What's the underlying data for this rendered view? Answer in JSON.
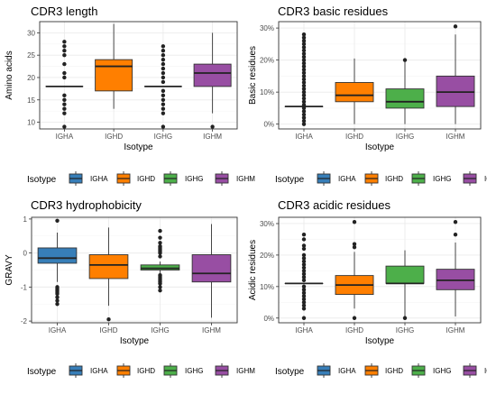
{
  "colors": {
    "IGHA": "#377eb8",
    "IGHD": "#ff7f00",
    "IGHG": "#4daf4a",
    "IGHM": "#984ea3",
    "grid_major": "#ebebeb",
    "grid_minor": "#f4f4f4",
    "panel_border": "#333333",
    "outlier": "#222222"
  },
  "chart_data": [
    {
      "type": "box",
      "title": "CDR3 length",
      "xlabel": "Isotype",
      "ylabel": "Amino acids",
      "categories": [
        "IGHA",
        "IGHD",
        "IGHG",
        "IGHM"
      ],
      "ylim": [
        8.5,
        32.5
      ],
      "yticks": [
        10,
        15,
        20,
        25,
        30
      ],
      "ytick_labels": [
        "10",
        "15",
        "20",
        "25",
        "30"
      ],
      "legend": {
        "title": "Isotype",
        "position": "bottom"
      },
      "boxes": [
        {
          "q1": 18,
          "median": 18,
          "q3": 18,
          "whisker_low": 18,
          "whisker_high": 18,
          "outliers": [
            9,
            12,
            13,
            14,
            15,
            16,
            20,
            21,
            23,
            25,
            26,
            27,
            28
          ]
        },
        {
          "q1": 17,
          "median": 22.5,
          "q3": 24,
          "whisker_low": 13,
          "whisker_high": 32,
          "outliers": []
        },
        {
          "q1": 18,
          "median": 18,
          "q3": 18,
          "whisker_low": 18,
          "whisker_high": 18,
          "outliers": [
            9,
            12,
            13,
            14,
            15,
            16,
            17,
            19,
            20,
            21,
            22,
            23,
            24,
            25,
            26,
            27
          ]
        },
        {
          "q1": 18,
          "median": 21,
          "q3": 23,
          "whisker_low": 12,
          "whisker_high": 30,
          "outliers": [
            9
          ]
        }
      ]
    },
    {
      "type": "box",
      "title": "CDR3 basic residues",
      "xlabel": "Isotype",
      "ylabel": "Basic residues",
      "categories": [
        "IGHA",
        "IGHD",
        "IGHG",
        "IGHM"
      ],
      "ylim": [
        -1.5,
        32
      ],
      "yticks": [
        0,
        10,
        20,
        30
      ],
      "ytick_labels": [
        "0%",
        "10%",
        "20%",
        "30%"
      ],
      "legend": {
        "title": "Isotype",
        "position": "bottom"
      },
      "boxes": [
        {
          "q1": 5.5,
          "median": 5.5,
          "q3": 5.5,
          "whisker_low": 5.5,
          "whisker_high": 5.5,
          "outliers": [
            0,
            1,
            2,
            3,
            4,
            5,
            6,
            7,
            8,
            9,
            10,
            11,
            12,
            13,
            14,
            15,
            16,
            17,
            18,
            19,
            20,
            21,
            22,
            23,
            24,
            25,
            26,
            27,
            28
          ]
        },
        {
          "q1": 7,
          "median": 9,
          "q3": 13,
          "whisker_low": 0,
          "whisker_high": 20.5,
          "outliers": []
        },
        {
          "q1": 5,
          "median": 7,
          "q3": 11,
          "whisker_low": 0,
          "whisker_high": 20,
          "outliers": [
            20
          ]
        },
        {
          "q1": 5.5,
          "median": 10,
          "q3": 15,
          "whisker_low": 0,
          "whisker_high": 28,
          "outliers": [
            30.5
          ]
        }
      ]
    },
    {
      "type": "box",
      "title": "CDR3 hydrophobicity",
      "xlabel": "Isotype",
      "ylabel": "GRAVY",
      "categories": [
        "IGHA",
        "IGHD",
        "IGHG",
        "IGHM"
      ],
      "ylim": [
        -2.05,
        1.05
      ],
      "yticks": [
        -2,
        -1,
        0,
        1
      ],
      "ytick_labels": [
        "-2",
        "-1",
        "0",
        "1"
      ],
      "legend": {
        "title": "Isotype",
        "position": "bottom"
      },
      "boxes": [
        {
          "q1": -0.3,
          "median": -0.15,
          "q3": 0.15,
          "whisker_low": -0.85,
          "whisker_high": 0.6,
          "outliers": [
            -1.0,
            -1.05,
            -1.1,
            -1.15,
            -1.2,
            -1.3,
            -1.4,
            -1.5,
            0.95
          ]
        },
        {
          "q1": -0.75,
          "median": -0.35,
          "q3": -0.05,
          "whisker_low": -1.55,
          "whisker_high": 0.75,
          "outliers": [
            -1.95
          ]
        },
        {
          "q1": -0.5,
          "median": -0.45,
          "q3": -0.35,
          "whisker_low": -0.6,
          "whisker_high": -0.25,
          "outliers": [
            -0.65,
            -0.7,
            -0.75,
            -0.8,
            -0.85,
            -0.9,
            -1.0,
            -1.1,
            -0.1,
            0.0,
            0.05,
            0.1,
            0.15,
            0.2,
            0.3,
            0.45,
            0.65
          ]
        },
        {
          "q1": -0.85,
          "median": -0.6,
          "q3": -0.05,
          "whisker_low": -1.9,
          "whisker_high": 0.85,
          "outliers": []
        }
      ]
    },
    {
      "type": "box",
      "title": "CDR3 acidic residues",
      "xlabel": "Isotype",
      "ylabel": "Acidic residues",
      "categories": [
        "IGHA",
        "IGHD",
        "IGHG",
        "IGHM"
      ],
      "ylim": [
        -1.5,
        32
      ],
      "yticks": [
        0,
        10,
        20,
        30
      ],
      "ytick_labels": [
        "0%",
        "10%",
        "20%",
        "30%"
      ],
      "legend": {
        "title": "Isotype",
        "position": "bottom"
      },
      "boxes": [
        {
          "q1": 11,
          "median": 11,
          "q3": 11,
          "whisker_low": 11,
          "whisker_high": 11,
          "outliers": [
            0,
            3,
            4,
            5,
            6,
            7,
            8,
            9,
            10,
            12,
            13,
            14,
            15,
            16,
            17,
            18,
            19,
            20,
            22,
            23,
            25,
            26.5
          ]
        },
        {
          "q1": 7.5,
          "median": 10.5,
          "q3": 13.5,
          "whisker_low": 3,
          "whisker_high": 21,
          "outliers": [
            0,
            22.5,
            23.5,
            30.5
          ]
        },
        {
          "q1": 11,
          "median": 11,
          "q3": 16.5,
          "whisker_low": 0,
          "whisker_high": 21.5,
          "outliers": [
            0
          ]
        },
        {
          "q1": 9,
          "median": 12,
          "q3": 15.5,
          "whisker_low": 0.5,
          "whisker_high": 24,
          "outliers": [
            26.5,
            30.5
          ]
        }
      ]
    }
  ]
}
